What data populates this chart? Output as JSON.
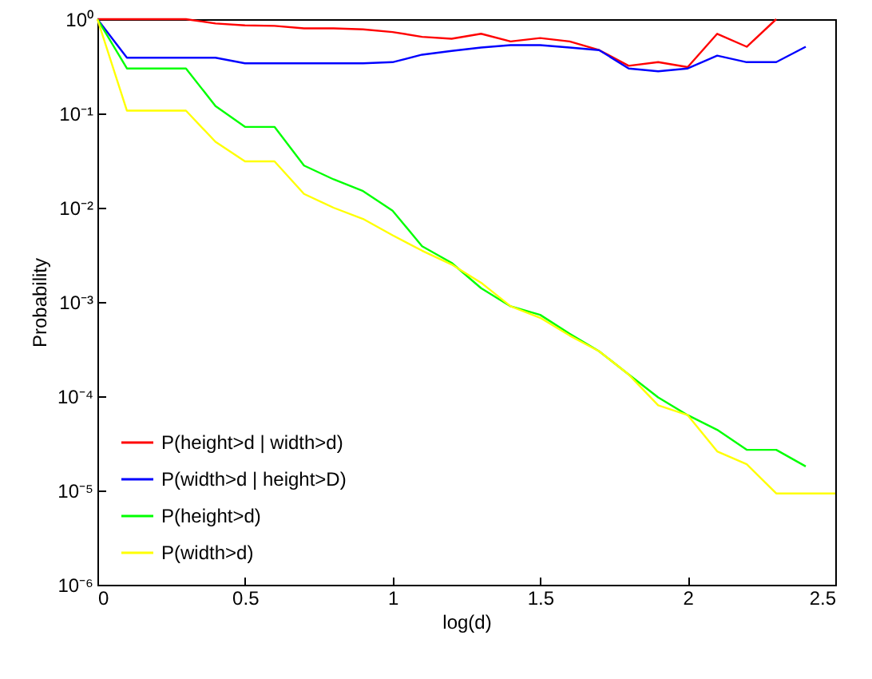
{
  "chart_data": {
    "type": "line",
    "xlabel": "log(d)",
    "ylabel": "Probability",
    "log": "y",
    "legend": "bottom left",
    "grid": false,
    "x": [
      0,
      0.1,
      0.2,
      0.3,
      0.4,
      0.5,
      0.6,
      0.7,
      0.8,
      0.9,
      1.0,
      1.1,
      1.2,
      1.3,
      1.4,
      1.5,
      1.6,
      1.7,
      1.8,
      1.9,
      2.0,
      2.1,
      2.2,
      2.3,
      2.4,
      2.5
    ],
    "xlim": [
      0,
      2.5
    ],
    "xticks": [
      0,
      0.5,
      1,
      1.5,
      2,
      2.5
    ],
    "ylim": [
      1e-06,
      1
    ],
    "yticks": [
      {
        "value": 1e-06,
        "label": "10⁻⁶"
      },
      {
        "value": 1e-05,
        "label": "10⁻⁵"
      },
      {
        "value": 0.0001,
        "label": "10⁻⁴"
      },
      {
        "value": 0.001,
        "label": "10⁻³"
      },
      {
        "value": 0.01,
        "label": "10⁻²"
      },
      {
        "value": 0.1,
        "label": "10⁻¹"
      },
      {
        "value": 1,
        "label": "10⁰"
      }
    ],
    "series": [
      {
        "name": "P(height>d | width>d)",
        "color": "#ff0000",
        "values": [
          1,
          1,
          1,
          1,
          0.9,
          0.86,
          0.85,
          0.8,
          0.8,
          0.78,
          0.73,
          0.65,
          0.62,
          0.7,
          0.58,
          0.63,
          0.58,
          0.47,
          0.32,
          0.35,
          0.31,
          0.7,
          0.51,
          1,
          null,
          null
        ]
      },
      {
        "name": "P(width>d | height>D)",
        "color": "#0000ff",
        "values": [
          1,
          0.39,
          0.39,
          0.39,
          0.39,
          0.34,
          0.34,
          0.34,
          0.34,
          0.34,
          0.35,
          0.42,
          0.46,
          0.5,
          0.53,
          0.53,
          0.5,
          0.47,
          0.3,
          0.28,
          0.3,
          0.41,
          0.35,
          0.35,
          0.51,
          null
        ]
      },
      {
        "name": "P(height>d)",
        "color": "#00ff00",
        "values": [
          1,
          0.3,
          0.3,
          0.3,
          0.12,
          0.072,
          0.072,
          0.028,
          0.02,
          0.015,
          0.0093,
          0.0039,
          0.0026,
          0.0014,
          0.0009,
          0.00073,
          0.00046,
          0.0003,
          0.00017,
          9.7e-05,
          6.3e-05,
          4.4e-05,
          2.7e-05,
          2.7e-05,
          1.8e-05,
          null
        ]
      },
      {
        "name": "P(width>d)",
        "color": "#ffff00",
        "values": [
          1,
          0.107,
          0.107,
          0.107,
          0.05,
          0.031,
          0.031,
          0.014,
          0.01,
          0.0076,
          0.0051,
          0.0035,
          0.0025,
          0.0016,
          0.0009,
          0.00068,
          0.00044,
          0.0003,
          0.00017,
          8e-05,
          6.3e-05,
          2.6e-05,
          1.9e-05,
          9.3e-06,
          9.3e-06,
          9.3e-06
        ]
      }
    ]
  }
}
